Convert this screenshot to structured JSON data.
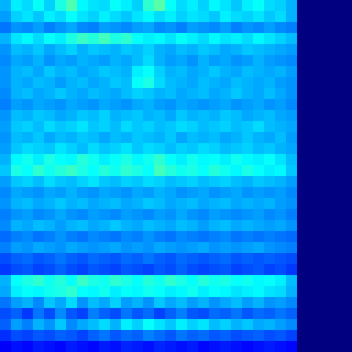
{
  "chart_data": {
    "type": "heatmap",
    "tick_labels": false,
    "xlim": [
      0,
      32
    ],
    "ylim": [
      0,
      32
    ],
    "color_range": [
      0,
      1
    ],
    "cells": [
      [
        0.3,
        0.36,
        0.34,
        0.38,
        0.33,
        0.4,
        0.45,
        0.37,
        0.35,
        0.34,
        0.38,
        0.36,
        0.33,
        0.42,
        0.46,
        0.38,
        0.34,
        0.36,
        0.33,
        0.37,
        0.35,
        0.32,
        0.36,
        0.38,
        0.34,
        0.33,
        0.3,
        0,
        0,
        0,
        0,
        0
      ],
      [
        0.28,
        0.33,
        0.35,
        0.32,
        0.36,
        0.34,
        0.38,
        0.35,
        0.33,
        0.36,
        0.34,
        0.32,
        0.35,
        0.37,
        0.34,
        0.36,
        0.33,
        0.35,
        0.34,
        0.32,
        0.36,
        0.34,
        0.33,
        0.35,
        0.32,
        0.34,
        0.3,
        0,
        0,
        0,
        0,
        0
      ],
      [
        0.24,
        0.27,
        0.26,
        0.28,
        0.25,
        0.27,
        0.29,
        0.26,
        0.25,
        0.28,
        0.27,
        0.26,
        0.28,
        0.29,
        0.26,
        0.27,
        0.25,
        0.28,
        0.27,
        0.26,
        0.28,
        0.25,
        0.27,
        0.26,
        0.28,
        0.26,
        0.25,
        0,
        0,
        0,
        0,
        0
      ],
      [
        0.3,
        0.35,
        0.37,
        0.34,
        0.38,
        0.36,
        0.4,
        0.43,
        0.41,
        0.44,
        0.4,
        0.42,
        0.38,
        0.36,
        0.37,
        0.35,
        0.38,
        0.36,
        0.34,
        0.37,
        0.35,
        0.36,
        0.34,
        0.37,
        0.35,
        0.33,
        0.31,
        0,
        0,
        0,
        0,
        0
      ],
      [
        0.27,
        0.31,
        0.3,
        0.32,
        0.29,
        0.31,
        0.33,
        0.3,
        0.32,
        0.31,
        0.3,
        0.32,
        0.31,
        0.33,
        0.3,
        0.29,
        0.31,
        0.3,
        0.32,
        0.31,
        0.29,
        0.3,
        0.32,
        0.31,
        0.3,
        0.29,
        0.28,
        0,
        0,
        0,
        0,
        0
      ],
      [
        0.26,
        0.29,
        0.28,
        0.3,
        0.27,
        0.29,
        0.28,
        0.3,
        0.29,
        0.28,
        0.3,
        0.29,
        0.31,
        0.34,
        0.3,
        0.28,
        0.29,
        0.27,
        0.3,
        0.28,
        0.29,
        0.27,
        0.28,
        0.3,
        0.28,
        0.27,
        0.26,
        0,
        0,
        0,
        0,
        0
      ],
      [
        0.27,
        0.3,
        0.31,
        0.29,
        0.32,
        0.3,
        0.31,
        0.29,
        0.3,
        0.32,
        0.31,
        0.3,
        0.36,
        0.38,
        0.33,
        0.3,
        0.31,
        0.29,
        0.3,
        0.32,
        0.3,
        0.29,
        0.31,
        0.3,
        0.29,
        0.3,
        0.28,
        0,
        0,
        0,
        0,
        0
      ],
      [
        0.27,
        0.3,
        0.29,
        0.31,
        0.3,
        0.28,
        0.3,
        0.31,
        0.29,
        0.3,
        0.32,
        0.31,
        0.38,
        0.4,
        0.34,
        0.31,
        0.3,
        0.29,
        0.31,
        0.3,
        0.29,
        0.31,
        0.3,
        0.29,
        0.3,
        0.28,
        0.27,
        0,
        0,
        0,
        0,
        0
      ],
      [
        0.26,
        0.3,
        0.31,
        0.29,
        0.3,
        0.32,
        0.3,
        0.29,
        0.31,
        0.3,
        0.29,
        0.31,
        0.33,
        0.32,
        0.3,
        0.31,
        0.29,
        0.3,
        0.31,
        0.29,
        0.3,
        0.32,
        0.3,
        0.29,
        0.31,
        0.29,
        0.27,
        0,
        0,
        0,
        0,
        0
      ],
      [
        0.25,
        0.28,
        0.27,
        0.29,
        0.28,
        0.27,
        0.29,
        0.28,
        0.27,
        0.29,
        0.28,
        0.27,
        0.29,
        0.3,
        0.28,
        0.27,
        0.29,
        0.28,
        0.27,
        0.28,
        0.29,
        0.27,
        0.28,
        0.29,
        0.27,
        0.28,
        0.26,
        0,
        0,
        0,
        0,
        0
      ],
      [
        0.27,
        0.31,
        0.3,
        0.32,
        0.31,
        0.29,
        0.3,
        0.32,
        0.31,
        0.33,
        0.3,
        0.31,
        0.32,
        0.3,
        0.31,
        0.29,
        0.32,
        0.3,
        0.31,
        0.3,
        0.32,
        0.31,
        0.29,
        0.3,
        0.31,
        0.29,
        0.28,
        0,
        0,
        0,
        0,
        0
      ],
      [
        0.28,
        0.32,
        0.33,
        0.31,
        0.34,
        0.32,
        0.33,
        0.35,
        0.32,
        0.33,
        0.31,
        0.34,
        0.32,
        0.33,
        0.31,
        0.32,
        0.34,
        0.33,
        0.31,
        0.32,
        0.33,
        0.31,
        0.32,
        0.34,
        0.31,
        0.3,
        0.29,
        0,
        0,
        0,
        0,
        0
      ],
      [
        0.27,
        0.31,
        0.3,
        0.32,
        0.29,
        0.31,
        0.3,
        0.32,
        0.31,
        0.29,
        0.31,
        0.3,
        0.32,
        0.31,
        0.3,
        0.32,
        0.29,
        0.31,
        0.3,
        0.31,
        0.29,
        0.3,
        0.32,
        0.3,
        0.29,
        0.31,
        0.28,
        0,
        0,
        0,
        0,
        0
      ],
      [
        0.28,
        0.32,
        0.34,
        0.33,
        0.32,
        0.35,
        0.33,
        0.31,
        0.34,
        0.32,
        0.33,
        0.35,
        0.32,
        0.34,
        0.33,
        0.31,
        0.33,
        0.32,
        0.34,
        0.33,
        0.31,
        0.32,
        0.33,
        0.31,
        0.32,
        0.3,
        0.29,
        0,
        0,
        0,
        0,
        0
      ],
      [
        0.3,
        0.37,
        0.39,
        0.36,
        0.4,
        0.38,
        0.37,
        0.41,
        0.39,
        0.36,
        0.38,
        0.4,
        0.37,
        0.39,
        0.42,
        0.38,
        0.36,
        0.39,
        0.37,
        0.38,
        0.36,
        0.39,
        0.37,
        0.36,
        0.38,
        0.35,
        0.31,
        0,
        0,
        0,
        0,
        0
      ],
      [
        0.32,
        0.4,
        0.38,
        0.42,
        0.39,
        0.41,
        0.43,
        0.4,
        0.38,
        0.41,
        0.39,
        0.42,
        0.4,
        0.38,
        0.44,
        0.41,
        0.39,
        0.4,
        0.38,
        0.41,
        0.39,
        0.37,
        0.4,
        0.38,
        0.36,
        0.37,
        0.32,
        0,
        0,
        0,
        0,
        0
      ],
      [
        0.28,
        0.32,
        0.33,
        0.31,
        0.34,
        0.32,
        0.31,
        0.33,
        0.35,
        0.32,
        0.31,
        0.33,
        0.32,
        0.34,
        0.33,
        0.31,
        0.32,
        0.33,
        0.31,
        0.32,
        0.33,
        0.31,
        0.3,
        0.32,
        0.31,
        0.3,
        0.28,
        0,
        0,
        0,
        0,
        0
      ],
      [
        0.26,
        0.29,
        0.28,
        0.27,
        0.29,
        0.28,
        0.3,
        0.28,
        0.27,
        0.29,
        0.28,
        0.27,
        0.29,
        0.28,
        0.3,
        0.29,
        0.27,
        0.28,
        0.29,
        0.27,
        0.28,
        0.29,
        0.27,
        0.28,
        0.27,
        0.28,
        0.26,
        0,
        0,
        0,
        0,
        0
      ],
      [
        0.27,
        0.3,
        0.31,
        0.29,
        0.3,
        0.32,
        0.3,
        0.31,
        0.29,
        0.3,
        0.31,
        0.29,
        0.3,
        0.32,
        0.31,
        0.29,
        0.3,
        0.31,
        0.29,
        0.3,
        0.31,
        0.29,
        0.3,
        0.29,
        0.3,
        0.28,
        0.27,
        0,
        0,
        0,
        0,
        0
      ],
      [
        0.25,
        0.27,
        0.28,
        0.26,
        0.27,
        0.29,
        0.27,
        0.26,
        0.28,
        0.27,
        0.26,
        0.28,
        0.27,
        0.26,
        0.28,
        0.27,
        0.29,
        0.27,
        0.26,
        0.28,
        0.27,
        0.26,
        0.27,
        0.28,
        0.26,
        0.27,
        0.25,
        0,
        0,
        0,
        0,
        0
      ],
      [
        0.26,
        0.3,
        0.29,
        0.31,
        0.3,
        0.28,
        0.3,
        0.31,
        0.29,
        0.3,
        0.32,
        0.3,
        0.29,
        0.31,
        0.3,
        0.29,
        0.31,
        0.3,
        0.28,
        0.3,
        0.31,
        0.29,
        0.3,
        0.29,
        0.28,
        0.29,
        0.27,
        0,
        0,
        0,
        0,
        0
      ],
      [
        0.23,
        0.25,
        0.26,
        0.24,
        0.25,
        0.27,
        0.25,
        0.24,
        0.26,
        0.25,
        0.24,
        0.26,
        0.25,
        0.27,
        0.25,
        0.24,
        0.26,
        0.25,
        0.24,
        0.25,
        0.26,
        0.24,
        0.25,
        0.24,
        0.25,
        0.24,
        0.23,
        0,
        0,
        0,
        0,
        0
      ],
      [
        0.25,
        0.28,
        0.27,
        0.29,
        0.28,
        0.27,
        0.29,
        0.28,
        0.27,
        0.28,
        0.29,
        0.27,
        0.28,
        0.27,
        0.29,
        0.28,
        0.27,
        0.28,
        0.29,
        0.27,
        0.28,
        0.27,
        0.28,
        0.29,
        0.27,
        0.26,
        0.25,
        0,
        0,
        0,
        0,
        0
      ],
      [
        0.2,
        0.22,
        0.23,
        0.21,
        0.22,
        0.24,
        0.22,
        0.21,
        0.23,
        0.22,
        0.21,
        0.23,
        0.22,
        0.24,
        0.22,
        0.21,
        0.23,
        0.22,
        0.21,
        0.22,
        0.23,
        0.21,
        0.22,
        0.21,
        0.22,
        0.21,
        0.2,
        0,
        0,
        0,
        0,
        0
      ],
      [
        0.18,
        0.2,
        0.21,
        0.19,
        0.2,
        0.22,
        0.2,
        0.19,
        0.21,
        0.2,
        0.19,
        0.21,
        0.2,
        0.19,
        0.21,
        0.2,
        0.22,
        0.2,
        0.19,
        0.2,
        0.21,
        0.19,
        0.2,
        0.21,
        0.19,
        0.2,
        0.18,
        0,
        0,
        0,
        0,
        0
      ],
      [
        0.3,
        0.38,
        0.4,
        0.42,
        0.39,
        0.41,
        0.38,
        0.43,
        0.4,
        0.39,
        0.42,
        0.4,
        0.38,
        0.41,
        0.39,
        0.42,
        0.4,
        0.38,
        0.41,
        0.39,
        0.4,
        0.38,
        0.39,
        0.37,
        0.38,
        0.36,
        0.31,
        0,
        0,
        0,
        0,
        0
      ],
      [
        0.29,
        0.36,
        0.38,
        0.37,
        0.39,
        0.4,
        0.42,
        0.38,
        0.37,
        0.39,
        0.36,
        0.38,
        0.37,
        0.39,
        0.38,
        0.36,
        0.37,
        0.39,
        0.36,
        0.38,
        0.37,
        0.35,
        0.36,
        0.37,
        0.35,
        0.34,
        0.3,
        0,
        0,
        0,
        0,
        0
      ],
      [
        0.24,
        0.28,
        0.3,
        0.26,
        0.32,
        0.29,
        0.34,
        0.27,
        0.31,
        0.29,
        0.33,
        0.28,
        0.3,
        0.27,
        0.32,
        0.29,
        0.31,
        0.28,
        0.3,
        0.27,
        0.29,
        0.31,
        0.28,
        0.3,
        0.27,
        0.28,
        0.26,
        0,
        0,
        0,
        0,
        0
      ],
      [
        0.2,
        0.22,
        0.18,
        0.24,
        0.2,
        0.26,
        0.21,
        0.19,
        0.25,
        0.22,
        0.2,
        0.24,
        0.21,
        0.23,
        0.19,
        0.22,
        0.25,
        0.21,
        0.2,
        0.23,
        0.22,
        0.24,
        0.21,
        0.23,
        0.22,
        0.24,
        0.22,
        0,
        0,
        0,
        0,
        0
      ],
      [
        0.22,
        0.28,
        0.25,
        0.3,
        0.27,
        0.32,
        0.26,
        0.29,
        0.31,
        0.34,
        0.3,
        0.36,
        0.33,
        0.38,
        0.35,
        0.32,
        0.36,
        0.33,
        0.35,
        0.31,
        0.33,
        0.3,
        0.32,
        0.29,
        0.3,
        0.28,
        0.26,
        0,
        0,
        0,
        0,
        0
      ],
      [
        0.17,
        0.2,
        0.19,
        0.21,
        0.2,
        0.22,
        0.21,
        0.19,
        0.22,
        0.24,
        0.21,
        0.23,
        0.22,
        0.25,
        0.23,
        0.21,
        0.24,
        0.22,
        0.23,
        0.21,
        0.22,
        0.2,
        0.21,
        0.22,
        0.2,
        0.21,
        0.19,
        0,
        0,
        0,
        0,
        0
      ],
      [
        0.12,
        0.14,
        0.13,
        0.15,
        0.14,
        0.13,
        0.15,
        0.14,
        0.13,
        0.15,
        0.14,
        0.16,
        0.15,
        0.14,
        0.16,
        0.15,
        0.14,
        0.15,
        0.13,
        0.14,
        0.15,
        0.14,
        0.13,
        0.14,
        0.15,
        0.14,
        0.13,
        0,
        0,
        0,
        0,
        0
      ]
    ]
  }
}
